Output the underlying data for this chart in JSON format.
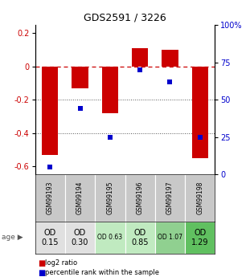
{
  "title": "GDS2591 / 3226",
  "samples": [
    "GSM99193",
    "GSM99194",
    "GSM99195",
    "GSM99196",
    "GSM99197",
    "GSM99198"
  ],
  "log2_ratio": [
    -0.53,
    -0.13,
    -0.28,
    0.11,
    0.1,
    -0.55
  ],
  "percentile_rank": [
    5,
    44,
    25,
    70,
    62,
    25
  ],
  "bar_color": "#cc0000",
  "dot_color": "#0000cc",
  "ylim_left": [
    -0.65,
    0.25
  ],
  "ylim_right": [
    0,
    100
  ],
  "yticks_left": [
    -0.6,
    -0.4,
    -0.2,
    0.0,
    0.2
  ],
  "yticks_right": [
    0,
    25,
    50,
    75,
    100
  ],
  "ytick_labels_right": [
    "0",
    "25",
    "50",
    "75",
    "100%"
  ],
  "age_labels": [
    "OD\n0.15",
    "OD\n0.30",
    "OD 0.63",
    "OD\n0.85",
    "OD 1.07",
    "OD\n1.29"
  ],
  "age_colors": [
    "#e0e0e0",
    "#e0e0e0",
    "#c0eac0",
    "#c0eac0",
    "#90d090",
    "#60c060"
  ],
  "age_fontsize_large": [
    true,
    true,
    false,
    true,
    false,
    true
  ],
  "sample_bg": "#c8c8c8",
  "legend_red": "log2 ratio",
  "legend_blue": "percentile rank within the sample",
  "hline_color": "#cc0000",
  "dotted_line_color": "#555555"
}
